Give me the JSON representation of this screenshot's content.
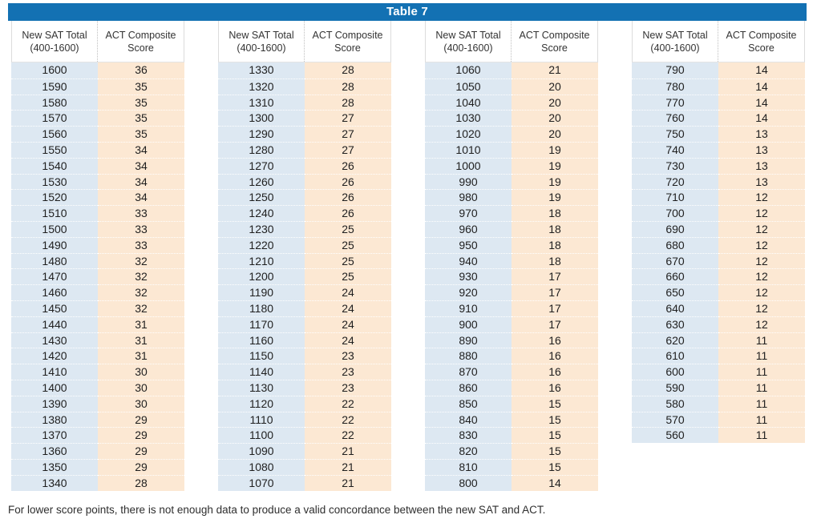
{
  "title": "Table 7",
  "columns": {
    "sat_line1": "New SAT Total",
    "sat_line2": "(400-1600)",
    "act_line1": "ACT Composite",
    "act_line2": "Score"
  },
  "footnote": "For lower score points, there is not enough data to produce a valid concordance between the new SAT and ACT.",
  "colors": {
    "title_bg": "#1371b3",
    "title_text": "#ffffff",
    "sat_cell_bg": "#dde8f2",
    "act_cell_bg": "#fce8d3"
  },
  "groups": [
    {
      "rows": [
        {
          "sat": "1600",
          "act": "36"
        },
        {
          "sat": "1590",
          "act": "35"
        },
        {
          "sat": "1580",
          "act": "35"
        },
        {
          "sat": "1570",
          "act": "35"
        },
        {
          "sat": "1560",
          "act": "35"
        },
        {
          "sat": "1550",
          "act": "34"
        },
        {
          "sat": "1540",
          "act": "34"
        },
        {
          "sat": "1530",
          "act": "34"
        },
        {
          "sat": "1520",
          "act": "34"
        },
        {
          "sat": "1510",
          "act": "33"
        },
        {
          "sat": "1500",
          "act": "33"
        },
        {
          "sat": "1490",
          "act": "33"
        },
        {
          "sat": "1480",
          "act": "32"
        },
        {
          "sat": "1470",
          "act": "32"
        },
        {
          "sat": "1460",
          "act": "32"
        },
        {
          "sat": "1450",
          "act": "32"
        },
        {
          "sat": "1440",
          "act": "31"
        },
        {
          "sat": "1430",
          "act": "31"
        },
        {
          "sat": "1420",
          "act": "31"
        },
        {
          "sat": "1410",
          "act": "30"
        },
        {
          "sat": "1400",
          "act": "30"
        },
        {
          "sat": "1390",
          "act": "30"
        },
        {
          "sat": "1380",
          "act": "29"
        },
        {
          "sat": "1370",
          "act": "29"
        },
        {
          "sat": "1360",
          "act": "29"
        },
        {
          "sat": "1350",
          "act": "29"
        },
        {
          "sat": "1340",
          "act": "28"
        }
      ]
    },
    {
      "rows": [
        {
          "sat": "1330",
          "act": "28"
        },
        {
          "sat": "1320",
          "act": "28"
        },
        {
          "sat": "1310",
          "act": "28"
        },
        {
          "sat": "1300",
          "act": "27"
        },
        {
          "sat": "1290",
          "act": "27"
        },
        {
          "sat": "1280",
          "act": "27"
        },
        {
          "sat": "1270",
          "act": "26"
        },
        {
          "sat": "1260",
          "act": "26"
        },
        {
          "sat": "1250",
          "act": "26"
        },
        {
          "sat": "1240",
          "act": "26"
        },
        {
          "sat": "1230",
          "act": "25"
        },
        {
          "sat": "1220",
          "act": "25"
        },
        {
          "sat": "1210",
          "act": "25"
        },
        {
          "sat": "1200",
          "act": "25"
        },
        {
          "sat": "1190",
          "act": "24"
        },
        {
          "sat": "1180",
          "act": "24"
        },
        {
          "sat": "1170",
          "act": "24"
        },
        {
          "sat": "1160",
          "act": "24"
        },
        {
          "sat": "1150",
          "act": "23"
        },
        {
          "sat": "1140",
          "act": "23"
        },
        {
          "sat": "1130",
          "act": "23"
        },
        {
          "sat": "1120",
          "act": "22"
        },
        {
          "sat": "1110",
          "act": "22"
        },
        {
          "sat": "1100",
          "act": "22"
        },
        {
          "sat": "1090",
          "act": "21"
        },
        {
          "sat": "1080",
          "act": "21"
        },
        {
          "sat": "1070",
          "act": "21"
        }
      ]
    },
    {
      "rows": [
        {
          "sat": "1060",
          "act": "21"
        },
        {
          "sat": "1050",
          "act": "20"
        },
        {
          "sat": "1040",
          "act": "20"
        },
        {
          "sat": "1030",
          "act": "20"
        },
        {
          "sat": "1020",
          "act": "20"
        },
        {
          "sat": "1010",
          "act": "19"
        },
        {
          "sat": "1000",
          "act": "19"
        },
        {
          "sat": "990",
          "act": "19"
        },
        {
          "sat": "980",
          "act": "19"
        },
        {
          "sat": "970",
          "act": "18"
        },
        {
          "sat": "960",
          "act": "18"
        },
        {
          "sat": "950",
          "act": "18"
        },
        {
          "sat": "940",
          "act": "18"
        },
        {
          "sat": "930",
          "act": "17"
        },
        {
          "sat": "920",
          "act": "17"
        },
        {
          "sat": "910",
          "act": "17"
        },
        {
          "sat": "900",
          "act": "17"
        },
        {
          "sat": "890",
          "act": "16"
        },
        {
          "sat": "880",
          "act": "16"
        },
        {
          "sat": "870",
          "act": "16"
        },
        {
          "sat": "860",
          "act": "16"
        },
        {
          "sat": "850",
          "act": "15"
        },
        {
          "sat": "840",
          "act": "15"
        },
        {
          "sat": "830",
          "act": "15"
        },
        {
          "sat": "820",
          "act": "15"
        },
        {
          "sat": "810",
          "act": "15"
        },
        {
          "sat": "800",
          "act": "14"
        }
      ]
    },
    {
      "rows": [
        {
          "sat": "790",
          "act": "14"
        },
        {
          "sat": "780",
          "act": "14"
        },
        {
          "sat": "770",
          "act": "14"
        },
        {
          "sat": "760",
          "act": "14"
        },
        {
          "sat": "750",
          "act": "13"
        },
        {
          "sat": "740",
          "act": "13"
        },
        {
          "sat": "730",
          "act": "13"
        },
        {
          "sat": "720",
          "act": "13"
        },
        {
          "sat": "710",
          "act": "12"
        },
        {
          "sat": "700",
          "act": "12"
        },
        {
          "sat": "690",
          "act": "12"
        },
        {
          "sat": "680",
          "act": "12"
        },
        {
          "sat": "670",
          "act": "12"
        },
        {
          "sat": "660",
          "act": "12"
        },
        {
          "sat": "650",
          "act": "12"
        },
        {
          "sat": "640",
          "act": "12"
        },
        {
          "sat": "630",
          "act": "12"
        },
        {
          "sat": "620",
          "act": "11"
        },
        {
          "sat": "610",
          "act": "11"
        },
        {
          "sat": "600",
          "act": "11"
        },
        {
          "sat": "590",
          "act": "11"
        },
        {
          "sat": "580",
          "act": "11"
        },
        {
          "sat": "570",
          "act": "11"
        },
        {
          "sat": "560",
          "act": "11"
        }
      ]
    }
  ]
}
